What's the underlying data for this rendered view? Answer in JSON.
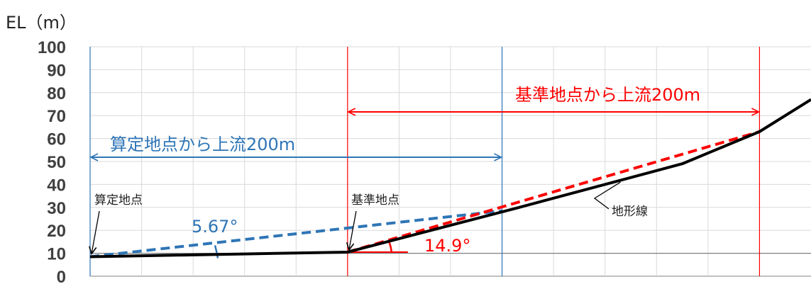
{
  "chart_data": {
    "type": "line",
    "ylabel": "EL（m）",
    "ylim": [
      0,
      100
    ],
    "yticks": [
      "0",
      "10",
      "20",
      "30",
      "40",
      "50",
      "60",
      "70",
      "80",
      "90",
      "100"
    ],
    "xlim": [
      0,
      560
    ],
    "grid": true,
    "series": [
      {
        "name": "地形線",
        "x": [
          0,
          200,
          330,
          460,
          520,
          560
        ],
        "y": [
          8.5,
          10.5,
          29.5,
          49,
          63,
          77
        ]
      }
    ],
    "reference_lines": {
      "calc_point": {
        "label": "算定地点",
        "x": 0,
        "x_end": 320,
        "range_label": "算定地点から上流200m",
        "slope_label": "5.67°",
        "slope_line": {
          "x": [
            0,
            320
          ],
          "y": [
            8.5,
            28.5
          ]
        }
      },
      "base_point": {
        "label": "基準地点",
        "x": 200,
        "x_end": 520,
        "range_label": "基準地点から上流200m",
        "slope_label": "14.9°",
        "slope_line": {
          "x": [
            200,
            520
          ],
          "y": [
            10.5,
            63
          ]
        }
      }
    },
    "annotations": [
      "地形線"
    ],
    "colors": {
      "blue": "#2E75B6",
      "red": "#FF0000",
      "terrain": "#000000",
      "grid": "#d9d9d9"
    }
  }
}
